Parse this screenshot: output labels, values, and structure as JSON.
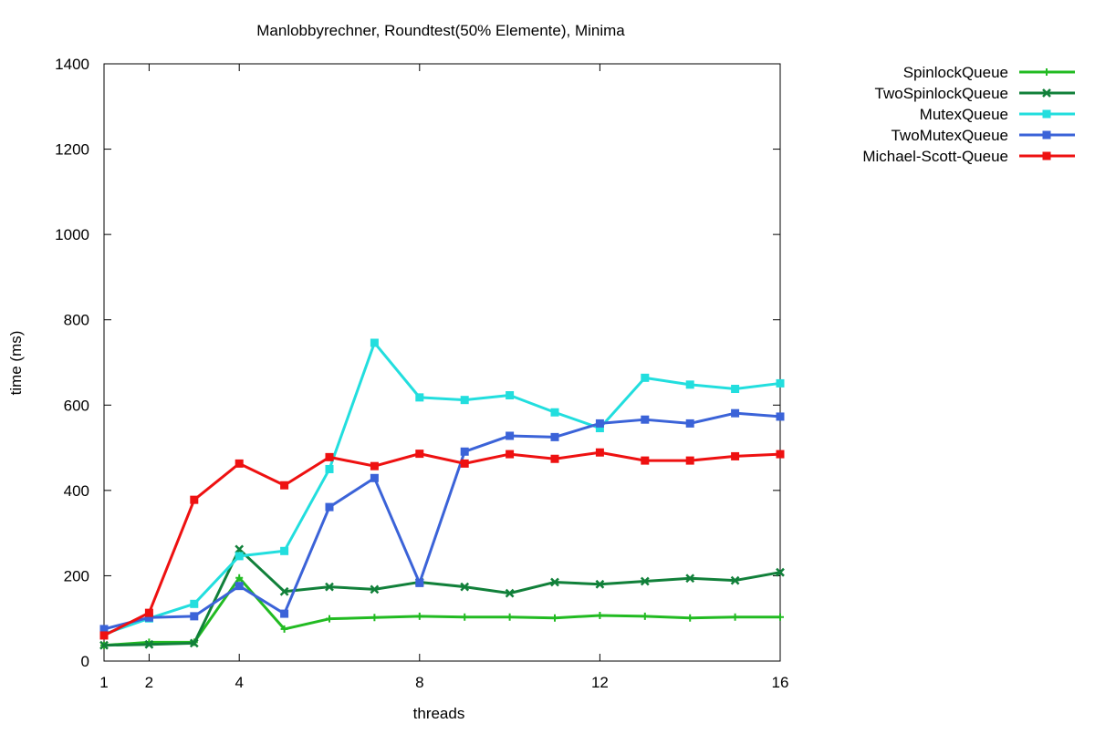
{
  "chart_data": {
    "type": "line",
    "title": "Manlobbyrechner, Roundtest(50% Elemente), Minima",
    "xlabel": "threads",
    "ylabel": "time (ms)",
    "xlim": [
      1,
      16
    ],
    "ylim": [
      0,
      1400
    ],
    "xticks": [
      1,
      2,
      4,
      8,
      12,
      16
    ],
    "yticks": [
      0,
      200,
      400,
      600,
      800,
      1000,
      1200,
      1400
    ],
    "grid": false,
    "legend": "outside-top-right",
    "x": [
      1,
      2,
      3,
      4,
      5,
      6,
      7,
      8,
      9,
      10,
      11,
      12,
      13,
      14,
      15,
      16
    ],
    "series": [
      {
        "name": "SpinlockQueue",
        "color": "#22bb22",
        "marker": "plus",
        "values": [
          37,
          44,
          44,
          195,
          75,
          99,
          102,
          105,
          103,
          103,
          101,
          107,
          105,
          101,
          103,
          103
        ]
      },
      {
        "name": "TwoSpinlockQueue",
        "color": "#11803a",
        "marker": "cross",
        "values": [
          37,
          39,
          42,
          262,
          163,
          174,
          168,
          185,
          174,
          159,
          185,
          180,
          187,
          194,
          189,
          208
        ]
      },
      {
        "name": "MutexQueue",
        "color": "#22dede",
        "marker": "square",
        "values": [
          63,
          100,
          134,
          246,
          258,
          450,
          746,
          618,
          612,
          623,
          583,
          546,
          664,
          648,
          638,
          651
        ]
      },
      {
        "name": "TwoMutexQueue",
        "color": "#3b63d8",
        "marker": "square",
        "values": [
          75,
          102,
          105,
          176,
          111,
          361,
          429,
          183,
          491,
          528,
          525,
          557,
          566,
          557,
          581,
          573
        ]
      },
      {
        "name": "Michael-Scott-Queue",
        "color": "#ee1111",
        "marker": "square",
        "values": [
          60,
          113,
          378,
          463,
          412,
          478,
          457,
          486,
          463,
          485,
          474,
          489,
          470,
          470,
          480,
          485
        ]
      }
    ]
  }
}
